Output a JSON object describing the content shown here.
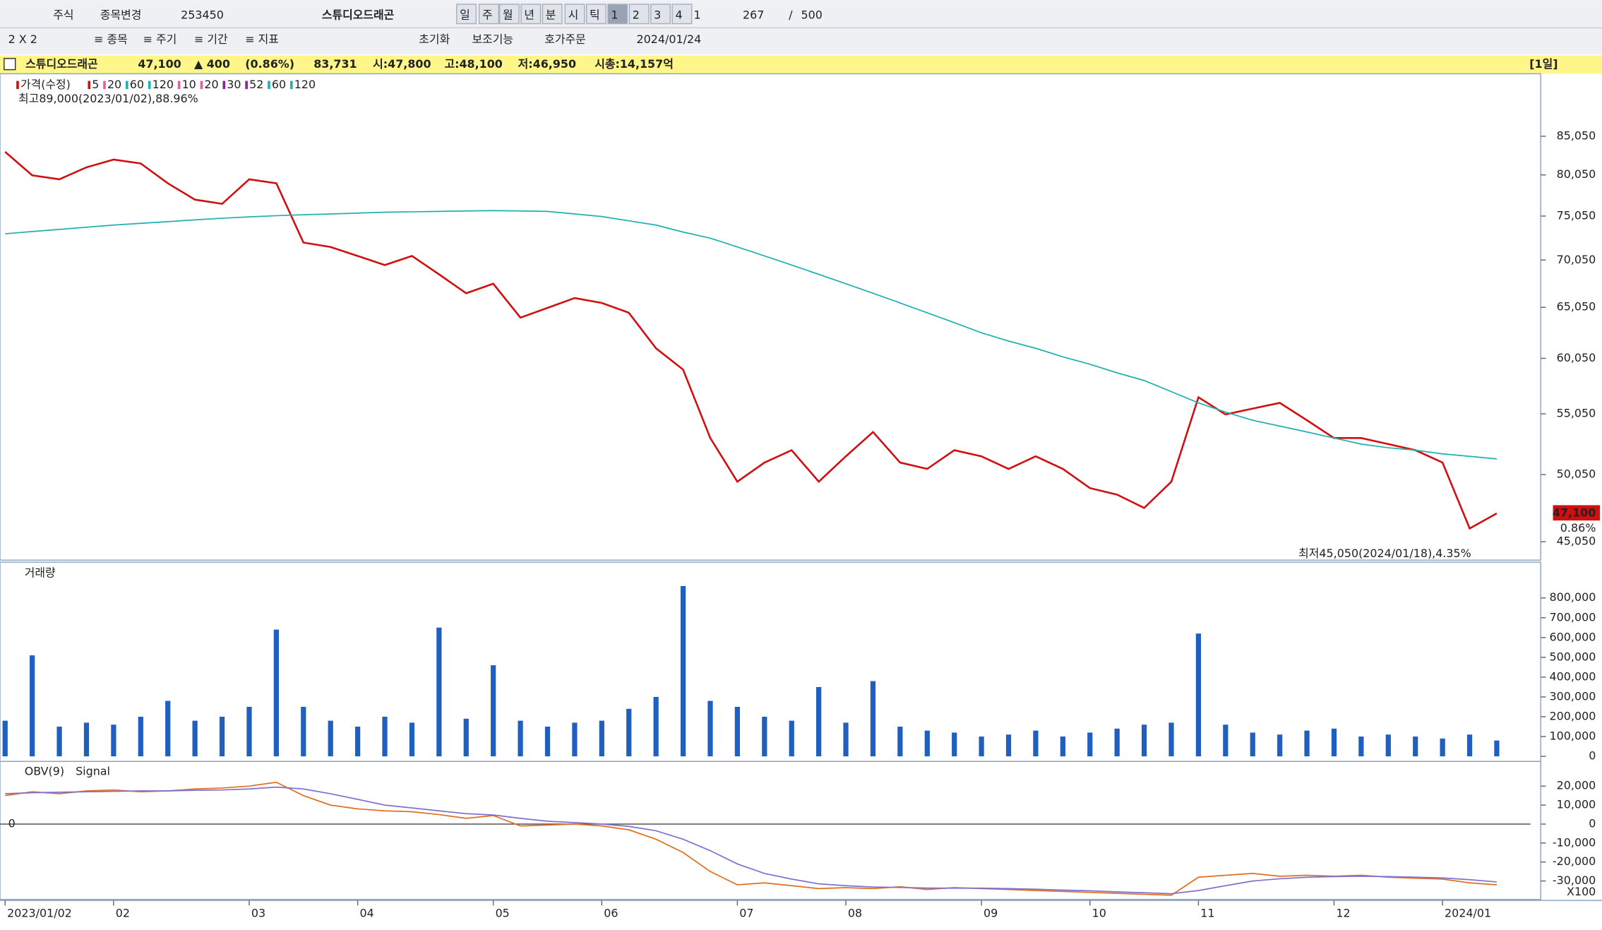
{
  "toolbar": {
    "row1": [
      "주식",
      "종목변경",
      "253450",
      "스튜디오드래곤",
      "일",
      "주",
      "월",
      "년",
      "분",
      "시",
      "틱",
      "1",
      "2",
      "3",
      "4",
      "1",
      "267",
      "/",
      "500"
    ],
    "row2": [
      "2 X 2",
      "≡ 종목",
      "≡ 주기",
      "≡ 기간",
      "≡ 지표",
      "초기화",
      "보조기능",
      "호가주문",
      "2024/01/24"
    ]
  },
  "info_bar": {
    "name": "스튜디오드래곤",
    "price": "47,100",
    "change": "▲ 400",
    "change_pct": "(0.86%)",
    "volume": "83,731",
    "open": "시:47,800",
    "high": "고:48,100",
    "low": "저:46,950",
    "market_cap": "시총:14,157억",
    "period": "[1일]"
  },
  "chart_data": [
    {
      "type": "line",
      "log_scale": true,
      "legend": [
        {
          "label": "가격(수정)",
          "color": "#d01010"
        },
        {
          "label": "5",
          "color": "#d01010"
        },
        {
          "label": "20",
          "color": "#e060a0"
        },
        {
          "label": "60",
          "color": "#20b0b0"
        },
        {
          "label": "120",
          "color": "#20b0b0"
        },
        {
          "label": "10",
          "color": "#e060a0"
        },
        {
          "label": "20",
          "color": "#e060a0"
        },
        {
          "label": "30",
          "color": "#9020a0"
        },
        {
          "label": "52",
          "color": "#9020a0"
        },
        {
          "label": "60",
          "color": "#20b0b0"
        },
        {
          "label": "120",
          "color": "#20b0b0"
        }
      ],
      "annotations": [
        "최고89,000(2023/01/02),88.96%",
        "최저45,050(2024/01/18),4.35%"
      ],
      "last_price_label": "47,100",
      "last_change_label": "0.86%",
      "series": [
        {
          "name": "가격(수정)",
          "color": "#d01010",
          "values": [
            83000,
            80000,
            79500,
            81000,
            82000,
            81500,
            79000,
            77000,
            76500,
            79500,
            79000,
            72000,
            71500,
            70500,
            69500,
            70500,
            68500,
            66500,
            67500,
            64000,
            65000,
            66000,
            65500,
            64500,
            61000,
            59000,
            53000,
            49500,
            51000,
            52000,
            49500,
            51500,
            53500,
            51000,
            50500,
            52000,
            51500,
            50500,
            51500,
            50500,
            49000,
            48500,
            47500,
            49500,
            56500,
            55000,
            55500,
            56000,
            54500,
            53000,
            53000,
            52500,
            52000,
            51000,
            46000,
            47100
          ]
        },
        {
          "name": "120",
          "color": "#20b0b0",
          "values": [
            73000,
            73250,
            73500,
            73750,
            74000,
            74200,
            74400,
            74600,
            74800,
            74950,
            75100,
            75200,
            75300,
            75400,
            75500,
            75550,
            75600,
            75650,
            75700,
            75650,
            75600,
            75300,
            75000,
            74500,
            74000,
            73200,
            72500,
            71500,
            70500,
            69500,
            68500,
            67500,
            66500,
            65500,
            64500,
            63500,
            62500,
            61700,
            61000,
            60200,
            59500,
            58700,
            58000,
            57000,
            56000,
            55200,
            54500,
            54000,
            53500,
            53000,
            52500,
            52200,
            52000,
            51700,
            51500,
            51300
          ]
        }
      ],
      "ylim": [
        43770,
        93800
      ],
      "yticks": [
        {
          "value": 85050,
          "label": "85,050"
        },
        {
          "value": 80050,
          "label": "80,050"
        },
        {
          "value": 75050,
          "label": "75,050"
        },
        {
          "value": 70050,
          "label": "70,050"
        },
        {
          "value": 65050,
          "label": "65,050"
        },
        {
          "value": 60050,
          "label": "60,050"
        },
        {
          "value": 55050,
          "label": "55,050"
        },
        {
          "value": 50050,
          "label": "50,050"
        },
        {
          "value": 45050,
          "label": "45,050"
        }
      ]
    },
    {
      "type": "bar",
      "title": "거래량",
      "color": "#1f5fbf",
      "values": [
        180000,
        510000,
        150000,
        170000,
        160000,
        200000,
        280000,
        180000,
        200000,
        250000,
        640000,
        250000,
        180000,
        150000,
        200000,
        170000,
        650000,
        190000,
        460000,
        180000,
        150000,
        170000,
        180000,
        240000,
        300000,
        860000,
        280000,
        250000,
        200000,
        180000,
        350000,
        170000,
        380000,
        150000,
        130000,
        120000,
        100000,
        110000,
        130000,
        100000,
        120000,
        140000,
        160000,
        170000,
        620000,
        160000,
        120000,
        110000,
        130000,
        140000,
        100000,
        110000,
        100000,
        90000,
        110000,
        80000
      ],
      "ylim": [
        0,
        970000
      ],
      "yticks": [
        0,
        {
          "value": 100000,
          "label": "100,000"
        },
        {
          "value": 200000,
          "label": "200,000"
        },
        {
          "value": 300000,
          "label": "300,000"
        },
        {
          "value": 400000,
          "label": "400,000"
        },
        {
          "value": 500000,
          "label": "500,000"
        },
        {
          "value": 600000,
          "label": "600,000"
        },
        {
          "value": 700000,
          "label": "700,000"
        },
        {
          "value": 800000,
          "label": "800,000"
        }
      ]
    },
    {
      "type": "line",
      "unit_label": "X100",
      "zero_label": "0",
      "categories": [
        "2023/01/02",
        null,
        null,
        null,
        "02",
        null,
        null,
        null,
        null,
        "03",
        null,
        null,
        null,
        "04",
        null,
        null,
        null,
        null,
        "05",
        null,
        null,
        null,
        "06",
        null,
        null,
        null,
        null,
        "07",
        null,
        null,
        null,
        "08",
        null,
        null,
        null,
        null,
        "09",
        null,
        null,
        null,
        "10",
        null,
        null,
        null,
        "11",
        null,
        null,
        null,
        null,
        "12",
        null,
        null,
        null,
        "2024/01",
        null,
        null
      ],
      "series": [
        {
          "name": "OBV(9)",
          "color": "#e07020",
          "values": [
            15000,
            17000,
            16000,
            17500,
            18000,
            17000,
            17500,
            18500,
            19000,
            20000,
            22000,
            15000,
            10000,
            8000,
            7000,
            6500,
            5000,
            3000,
            4500,
            -1000,
            -500,
            0,
            -1000,
            -3000,
            -8000,
            -15000,
            -25000,
            -32000,
            -31000,
            -32500,
            -34000,
            -33500,
            -34000,
            -33000,
            -34500,
            -33500,
            -34000,
            -34500,
            -35000,
            -35500,
            -36000,
            -36500,
            -37000,
            -37500,
            -28000,
            -27000,
            -26000,
            -27500,
            -27000,
            -27500,
            -27000,
            -28000,
            -28500,
            -29000,
            -31000,
            -32000
          ]
        },
        {
          "name": "Signal",
          "color": "#8070d0",
          "values": [
            16000,
            16500,
            16800,
            17000,
            17300,
            17500,
            17500,
            17800,
            18000,
            18500,
            19500,
            18500,
            16000,
            13000,
            10000,
            8500,
            7000,
            5500,
            4800,
            3000,
            1500,
            800,
            0,
            -1200,
            -3500,
            -8000,
            -14000,
            -21000,
            -26000,
            -29000,
            -31500,
            -32500,
            -33200,
            -33400,
            -33700,
            -33800,
            -33800,
            -34000,
            -34300,
            -34800,
            -35200,
            -35700,
            -36200,
            -36700,
            -35000,
            -32500,
            -30000,
            -28800,
            -28000,
            -27700,
            -27500,
            -27700,
            -28000,
            -28400,
            -29300,
            -30500
          ]
        }
      ],
      "ylim": [
        -39700,
        33000
      ],
      "yticks": [
        {
          "value": 20000,
          "label": "20,000"
        },
        {
          "value": 10000,
          "label": "10,000"
        },
        0,
        {
          "value": -10000,
          "label": "-10,000"
        },
        {
          "value": -20000,
          "label": "-20,000"
        },
        {
          "value": -30000,
          "label": "-30,000"
        }
      ]
    }
  ]
}
